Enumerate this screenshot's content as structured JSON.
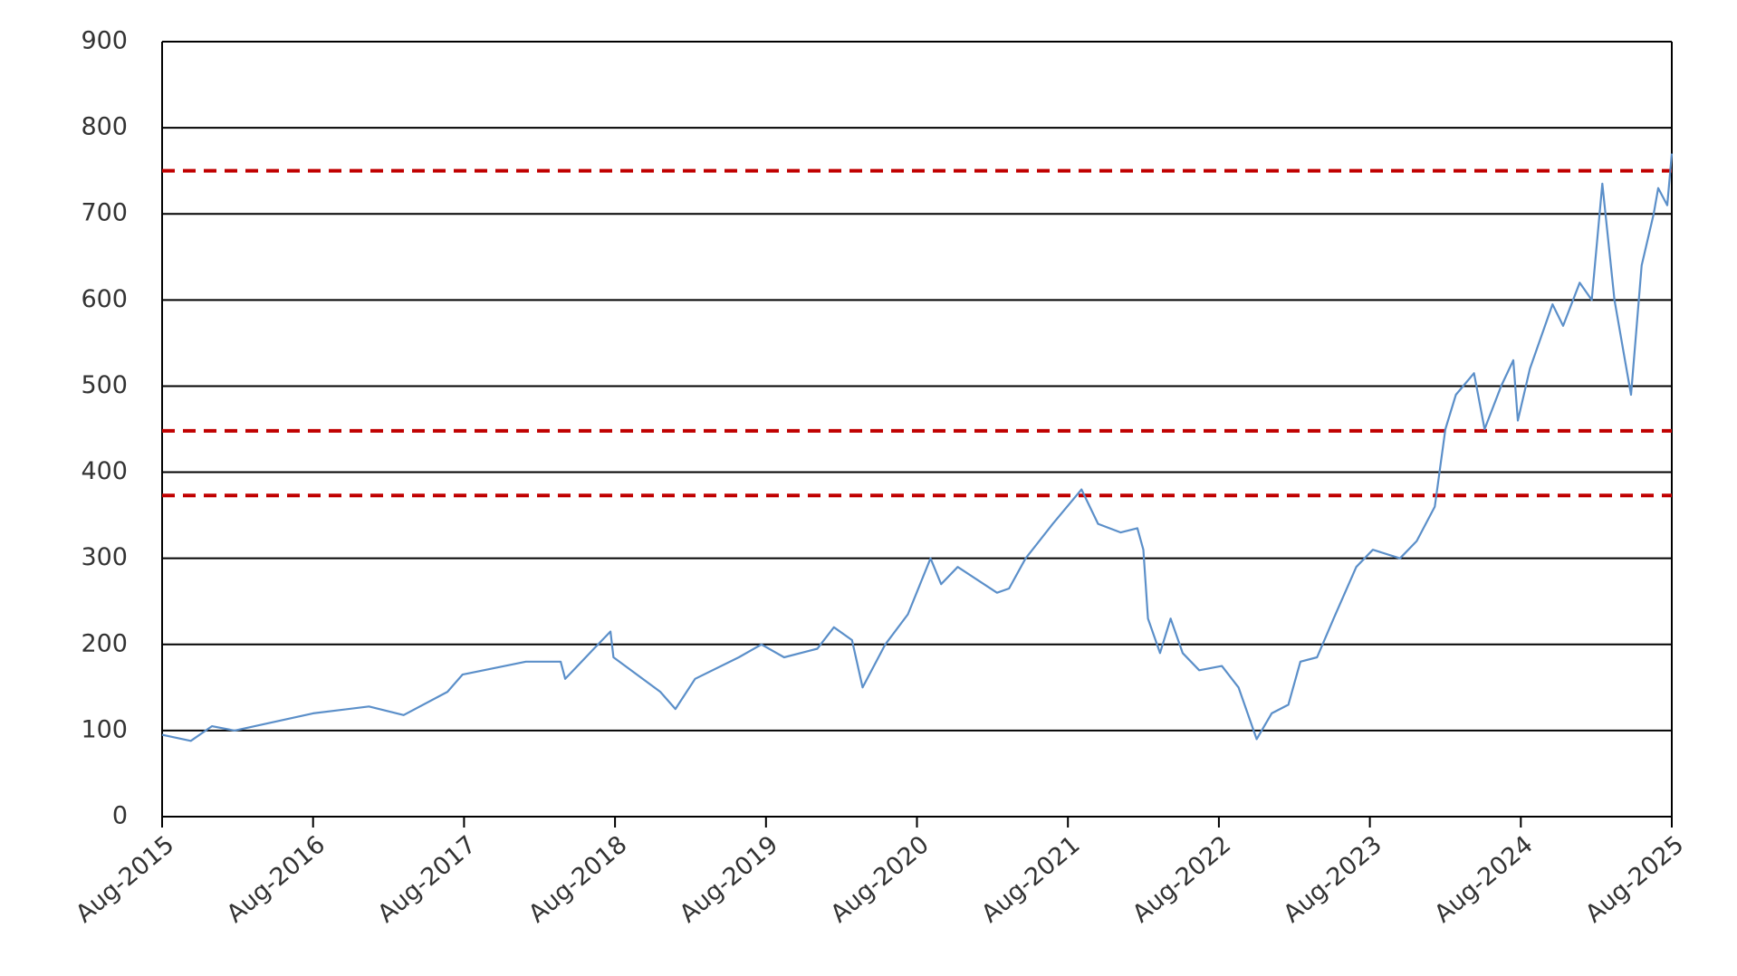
{
  "chart_data": {
    "type": "line",
    "series": [
      {
        "color": "#5b8fc9",
        "x": [
          2015.58,
          2015.77,
          2015.91,
          2016.06,
          2016.58,
          2016.95,
          2017.18,
          2017.47,
          2017.57,
          2017.99,
          2018.22,
          2018.25,
          2018.44,
          2018.55,
          2018.57,
          2018.88,
          2018.98,
          2019.11,
          2019.4,
          2019.55,
          2019.7,
          2019.92,
          2020.03,
          2020.15,
          2020.22,
          2020.37,
          2020.52,
          2020.67,
          2020.74,
          2020.85,
          2021.11,
          2021.19,
          2021.3,
          2021.48,
          2021.67,
          2021.78,
          2021.93,
          2022.04,
          2022.08,
          2022.11,
          2022.19,
          2022.26,
          2022.34,
          2022.45,
          2022.6,
          2022.71,
          2022.83,
          2022.93,
          2023.04,
          2023.12,
          2023.23,
          2023.34,
          2023.49,
          2023.6,
          2023.78,
          2023.89,
          2024.01,
          2024.08,
          2024.15,
          2024.27,
          2024.34,
          2024.45,
          2024.53,
          2024.56,
          2024.64,
          2024.79,
          2024.86,
          2024.97,
          2025.05,
          2025.12,
          2025.2,
          2025.27,
          2025.31,
          2025.38,
          2025.46,
          2025.49,
          2025.55,
          2025.58
        ],
        "values": [
          95,
          88,
          105,
          100,
          120,
          128,
          118,
          145,
          165,
          180,
          180,
          160,
          195,
          215,
          185,
          145,
          125,
          160,
          185,
          200,
          185,
          195,
          220,
          205,
          150,
          200,
          235,
          300,
          270,
          290,
          260,
          265,
          300,
          340,
          380,
          340,
          330,
          335,
          310,
          230,
          190,
          230,
          190,
          170,
          175,
          150,
          90,
          120,
          130,
          180,
          185,
          230,
          290,
          310,
          300,
          320,
          360,
          450,
          490,
          515,
          450,
          500,
          530,
          460,
          520,
          595,
          570,
          620,
          600,
          735,
          600,
          530,
          490,
          640,
          700,
          730,
          710,
          770
        ]
      }
    ],
    "hlines": [
      {
        "value": 750,
        "color": "#c00000"
      },
      {
        "value": 448,
        "color": "#c00000"
      },
      {
        "value": 373,
        "color": "#c00000"
      }
    ],
    "xlim": [
      2015.58,
      2025.58
    ],
    "xticks": [
      {
        "value": 2015.58,
        "label": "Aug-2015"
      },
      {
        "value": 2016.58,
        "label": "Aug-2016"
      },
      {
        "value": 2017.58,
        "label": "Aug-2017"
      },
      {
        "value": 2018.58,
        "label": "Aug-2018"
      },
      {
        "value": 2019.58,
        "label": "Aug-2019"
      },
      {
        "value": 2020.58,
        "label": "Aug-2020"
      },
      {
        "value": 2021.58,
        "label": "Aug-2021"
      },
      {
        "value": 2022.58,
        "label": "Aug-2022"
      },
      {
        "value": 2023.58,
        "label": "Aug-2023"
      },
      {
        "value": 2024.58,
        "label": "Aug-2024"
      },
      {
        "value": 2025.58,
        "label": "Aug-2025"
      }
    ],
    "ylim": [
      0,
      900
    ],
    "yticks": [
      0,
      100,
      200,
      300,
      400,
      500,
      600,
      700,
      800,
      900
    ],
    "grid": true
  }
}
